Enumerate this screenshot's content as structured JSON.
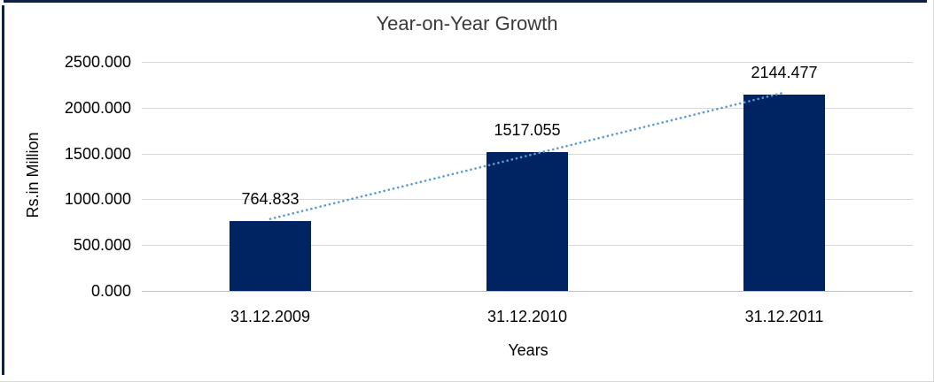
{
  "chart_data": {
    "type": "bar",
    "title": "Year-on-Year Growth",
    "xlabel": "Years",
    "ylabel": "Rs.in Million",
    "categories": [
      "31.12.2009",
      "31.12.2010",
      "31.12.2011"
    ],
    "values": [
      764.833,
      1517.055,
      2144.477
    ],
    "data_labels": [
      "764.833",
      "1517.055",
      "2144.477"
    ],
    "ytick_labels": [
      "0.000",
      "500.000",
      "1000.000",
      "1500.000",
      "2000.000",
      "2500.000"
    ],
    "ylim": [
      0,
      2500
    ],
    "grid": true,
    "legend": false,
    "trendline": {
      "type": "linear",
      "style": "dotted"
    },
    "colors": {
      "bar": "#002361",
      "trendline": "#5b9bd5",
      "gridline": "#d9d9d9",
      "axis_line": "#c0c0c0",
      "frame_border": "#0e2240",
      "title_text": "#3a3a3a",
      "label_text": "#000000"
    }
  }
}
